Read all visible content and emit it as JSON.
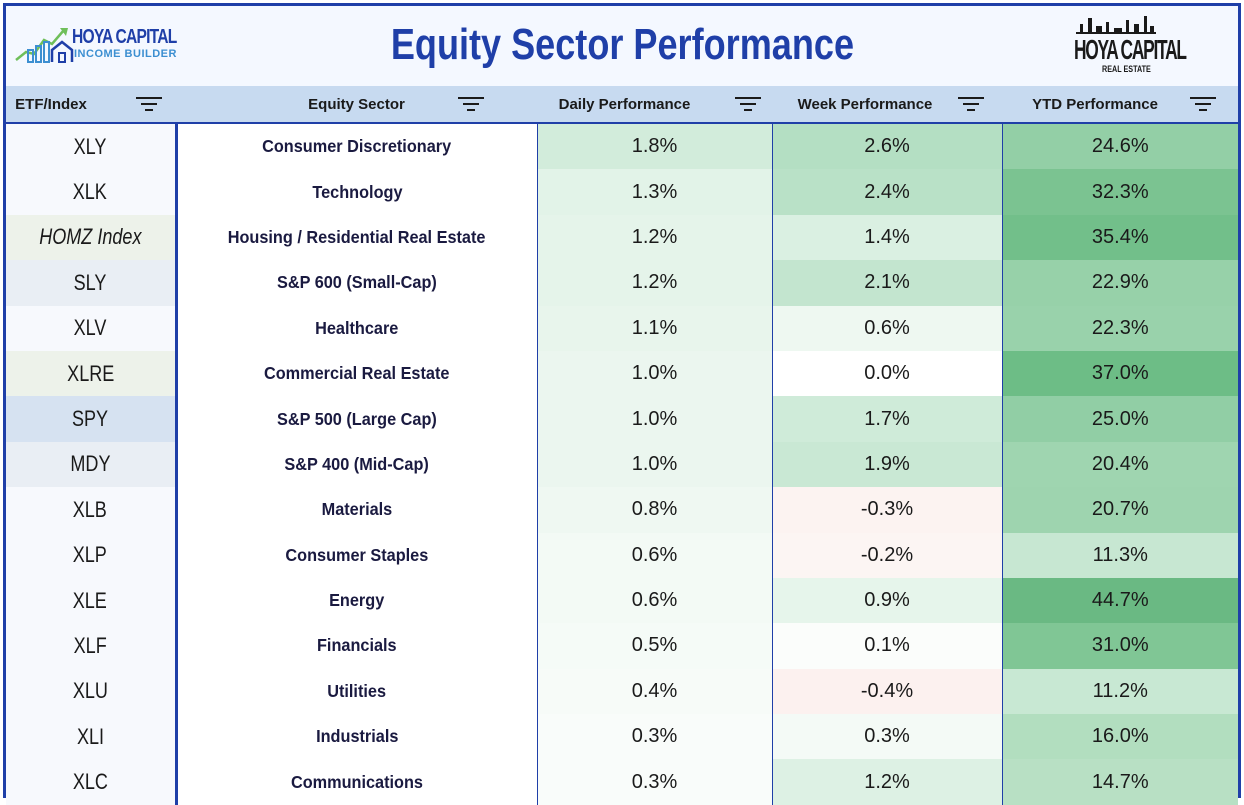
{
  "header": {
    "title": "Equity Sector Performance",
    "left_logo": {
      "brand": "HOYA CAPITAL",
      "sub": "INCOME BUILDER"
    },
    "right_logo": {
      "brand": "HOYA CAPITAL",
      "sub": "REAL ESTATE"
    }
  },
  "columns": [
    {
      "label": "ETF/Index",
      "icon": "filter-icon"
    },
    {
      "label": "Equity Sector",
      "icon": "filter-icon"
    },
    {
      "label": "Daily Performance",
      "icon": "filter-icon"
    },
    {
      "label": "Week Performance",
      "icon": "filter-icon"
    },
    {
      "label": "YTD Performance",
      "icon": "filter-icon"
    }
  ],
  "rows": [
    {
      "etf": "XLY",
      "sector": "Consumer Discretionary",
      "daily": "1.8%",
      "week": "2.6%",
      "ytd": "24.6%",
      "etf_bg": "#f7f9fd",
      "daily_bg": "#d2ecdb",
      "week_bg": "#b4dfc3",
      "ytd_bg": "#93cfa6"
    },
    {
      "etf": "XLK",
      "sector": "Technology",
      "daily": "1.3%",
      "week": "2.4%",
      "ytd": "32.3%",
      "etf_bg": "#f7f9fd",
      "daily_bg": "#e2f3e8",
      "week_bg": "#b9e1c7",
      "ytd_bg": "#7bc391"
    },
    {
      "etf": "HOMZ Index",
      "sector": "Housing / Residential Real Estate",
      "daily": "1.2%",
      "week": "1.4%",
      "ytd": "35.4%",
      "etf_bg": "#edf2ea",
      "daily_bg": "#e5f4ea",
      "week_bg": "#daf0e2",
      "ytd_bg": "#72bf8a",
      "etf_italic": true
    },
    {
      "etf": "SLY",
      "sector": "S&P 600 (Small-Cap)",
      "daily": "1.2%",
      "week": "2.1%",
      "ytd": "22.9%",
      "etf_bg": "#e9eef4",
      "daily_bg": "#e5f4ea",
      "week_bg": "#c3e5cf",
      "ytd_bg": "#97d1a9"
    },
    {
      "etf": "XLV",
      "sector": "Healthcare",
      "daily": "1.1%",
      "week": "0.6%",
      "ytd": "22.3%",
      "etf_bg": "#f7f9fd",
      "daily_bg": "#e8f5ec",
      "week_bg": "#eef8f1",
      "ytd_bg": "#99d2ab"
    },
    {
      "etf": "XLRE",
      "sector": "Commercial Real Estate",
      "daily": "1.0%",
      "week": "0.0%",
      "ytd": "37.0%",
      "etf_bg": "#edf2ea",
      "daily_bg": "#ebf6ef",
      "week_bg": "#ffffff",
      "ytd_bg": "#6dbd86"
    },
    {
      "etf": "SPY",
      "sector": "S&P 500 (Large Cap)",
      "daily": "1.0%",
      "week": "1.7%",
      "ytd": "25.0%",
      "etf_bg": "#d6e2f1",
      "daily_bg": "#ebf6ef",
      "week_bg": "#cfebd9",
      "ytd_bg": "#91cea5"
    },
    {
      "etf": "MDY",
      "sector": "S&P 400 (Mid-Cap)",
      "daily": "1.0%",
      "week": "1.9%",
      "ytd": "20.4%",
      "etf_bg": "#e9eef4",
      "daily_bg": "#ebf6ef",
      "week_bg": "#c9e8d4",
      "ytd_bg": "#9fd5b0"
    },
    {
      "etf": "XLB",
      "sector": "Materials",
      "daily": "0.8%",
      "week": "-0.3%",
      "ytd": "20.7%",
      "etf_bg": "#f7f9fd",
      "daily_bg": "#eff8f2",
      "week_bg": "#fcf3f1",
      "ytd_bg": "#9ed4af"
    },
    {
      "etf": "XLP",
      "sector": "Consumer Staples",
      "daily": "0.6%",
      "week": "-0.2%",
      "ytd": "11.3%",
      "etf_bg": "#f7f9fd",
      "daily_bg": "#f3faf5",
      "week_bg": "#fcf5f3",
      "ytd_bg": "#c7e7d2"
    },
    {
      "etf": "XLE",
      "sector": "Energy",
      "daily": "0.6%",
      "week": "0.9%",
      "ytd": "44.7%",
      "etf_bg": "#f7f9fd",
      "daily_bg": "#f3faf5",
      "week_bg": "#e6f5eb",
      "ytd_bg": "#6ab983"
    },
    {
      "etf": "XLF",
      "sector": "Financials",
      "daily": "0.5%",
      "week": "0.1%",
      "ytd": "31.0%",
      "etf_bg": "#f7f9fd",
      "daily_bg": "#f5fbf7",
      "week_bg": "#fbfdfb",
      "ytd_bg": "#80c695"
    },
    {
      "etf": "XLU",
      "sector": "Utilities",
      "daily": "0.4%",
      "week": "-0.4%",
      "ytd": "11.2%",
      "etf_bg": "#f7f9fd",
      "daily_bg": "#f7fbf8",
      "week_bg": "#fcf1ef",
      "ytd_bg": "#c8e8d3"
    },
    {
      "etf": "XLI",
      "sector": "Industrials",
      "daily": "0.3%",
      "week": "0.3%",
      "ytd": "16.0%",
      "etf_bg": "#f7f9fd",
      "daily_bg": "#f9fcfa",
      "week_bg": "#f4faf6",
      "ytd_bg": "#b2debf"
    },
    {
      "etf": "XLC",
      "sector": "Communications",
      "daily": "0.3%",
      "week": "1.2%",
      "ytd": "14.7%",
      "etf_bg": "#f7f9fd",
      "daily_bg": "#f9fcfa",
      "week_bg": "#ddf1e4",
      "ytd_bg": "#b8e0c4"
    }
  ],
  "colors": {
    "brand_blue": "#1f3fa8",
    "header_bg": "#c7daf0",
    "positive_green": "#6ab983",
    "negative_red": "#fcf1ef"
  }
}
